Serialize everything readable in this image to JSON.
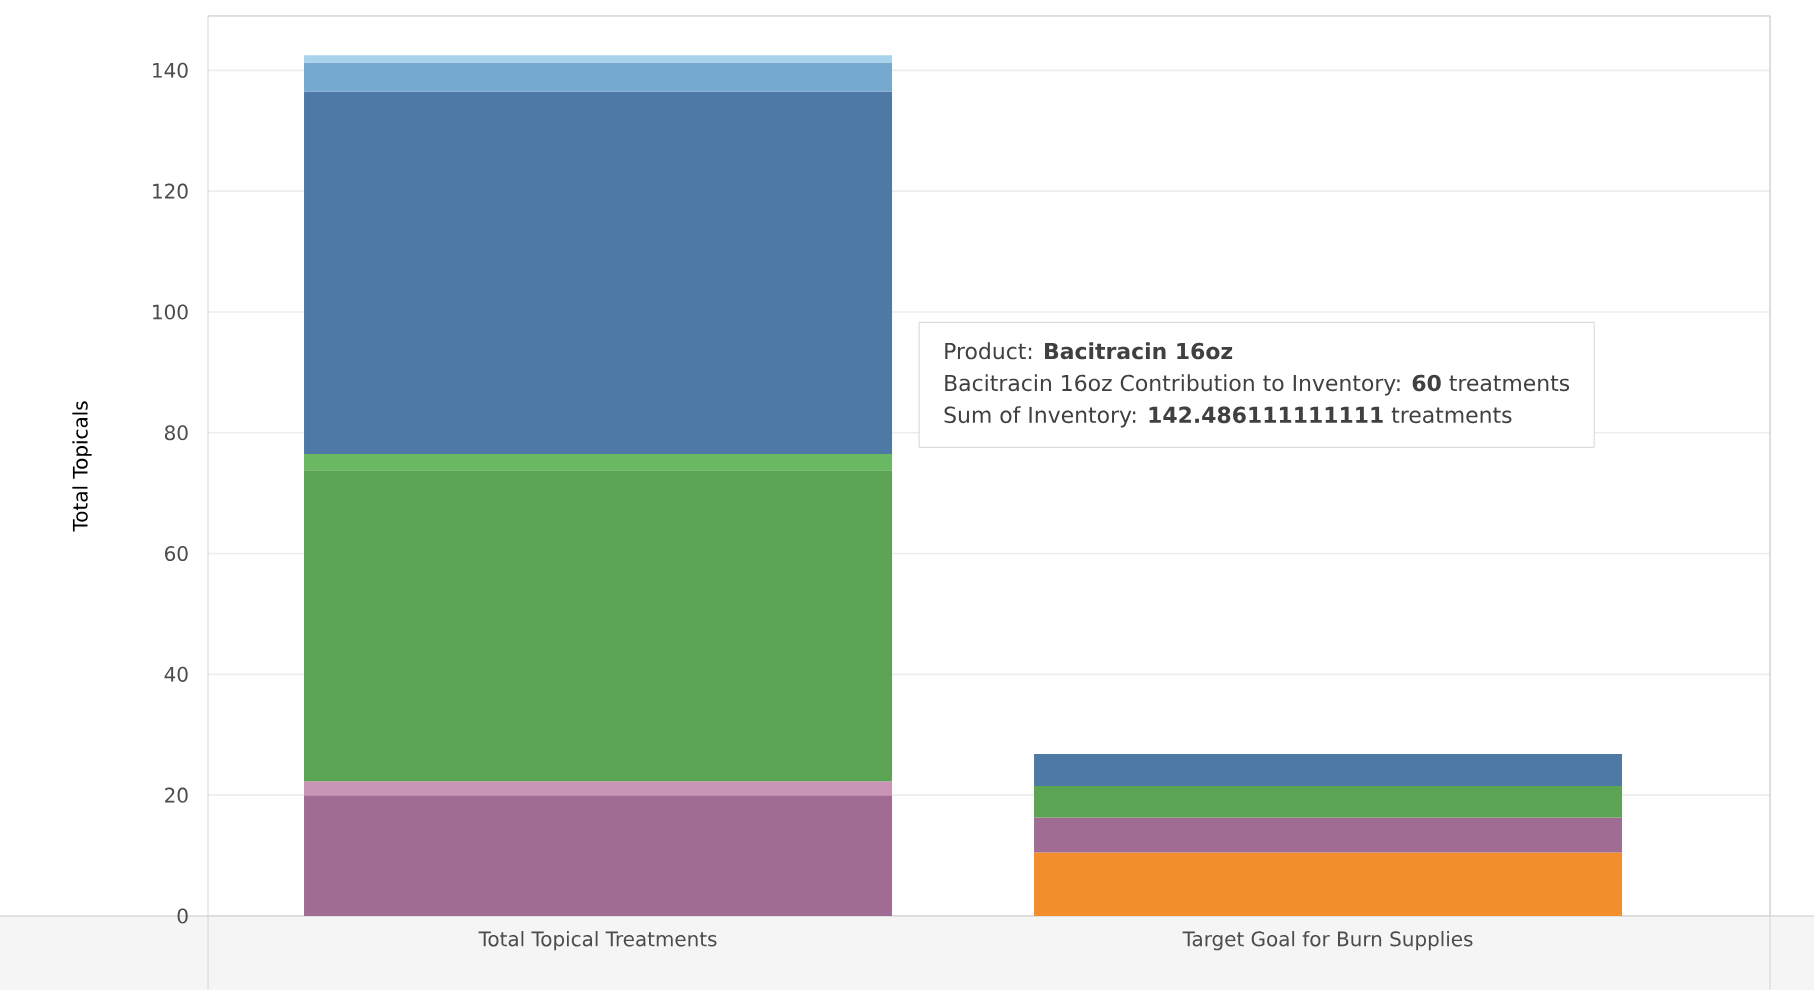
{
  "chart_data": {
    "type": "bar",
    "stacked": true,
    "ylabel": "Total Topicals",
    "categories": [
      "Total Topical Treatments",
      "Target Goal for Burn Supplies"
    ],
    "series": [
      {
        "color": "#f28e2b",
        "values": [
          null,
          10.5
        ]
      },
      {
        "color": "#a06c94",
        "values": [
          20,
          5.8
        ]
      },
      {
        "color": "#c994b5",
        "values": [
          2.3,
          null
        ]
      },
      {
        "color": "#5aa454",
        "values": [
          51.5,
          5.2
        ]
      },
      {
        "color": "#6ab861",
        "values": [
          2.7,
          null
        ]
      },
      {
        "color": "#4e79a7",
        "values": [
          60,
          5.3
        ]
      },
      {
        "color": "#76a9d0",
        "values": [
          4.8,
          null
        ]
      },
      {
        "color": "#a8d3ec",
        "values": [
          1.2,
          null
        ]
      }
    ],
    "ylim": [
      0,
      149
    ],
    "yticks": [
      0,
      20,
      40,
      60,
      80,
      100,
      120,
      140
    ],
    "grid": "y",
    "annotations": [
      "Product: **Bacitracin 16oz**",
      "Bacitracin 16oz Contribution to Inventory: **60** treatments",
      "Sum of Inventory: **142.486111111111** treatments"
    ]
  }
}
